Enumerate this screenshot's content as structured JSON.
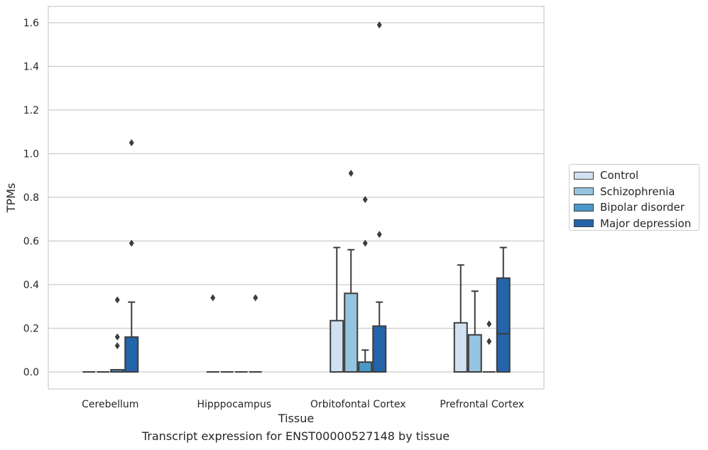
{
  "caption": "Transcript expression for ENST00000527148 by tissue",
  "colors": {
    "Control": "#d0e1f2",
    "Schizophrenia": "#94c4df",
    "Bipolar disorder": "#4a98c9",
    "Major depression": "#2464aa"
  },
  "chart_data": {
    "type": "box",
    "xlabel": "Tissue",
    "ylabel": "TPMs",
    "ylim": [
      -0.08,
      1.67
    ],
    "yticks": [
      "0.0",
      "0.2",
      "0.4",
      "0.6",
      "0.8",
      "1.0",
      "1.2",
      "1.4",
      "1.6"
    ],
    "grid": true,
    "legend_position": "right",
    "categories": [
      "Cerebellum",
      "Hipppocampus",
      "Orbitofontal Cortex",
      "Prefrontal Cortex"
    ],
    "series": [
      {
        "name": "Control",
        "boxes": [
          {
            "q1": 0,
            "median": 0,
            "q3": 0,
            "whislo": 0,
            "whishi": 0,
            "fliers": []
          },
          {
            "q1": 0,
            "median": 0,
            "q3": 0,
            "whislo": 0,
            "whishi": 0,
            "fliers": [
              0.34
            ]
          },
          {
            "q1": 0,
            "median": 0,
            "q3": 0.235,
            "whislo": 0,
            "whishi": 0.57,
            "fliers": []
          },
          {
            "q1": 0,
            "median": 0,
            "q3": 0.225,
            "whislo": 0,
            "whishi": 0.49,
            "fliers": []
          }
        ]
      },
      {
        "name": "Schizophrenia",
        "boxes": [
          {
            "q1": 0,
            "median": 0,
            "q3": 0,
            "whislo": 0,
            "whishi": 0,
            "fliers": []
          },
          {
            "q1": 0,
            "median": 0,
            "q3": 0,
            "whislo": 0,
            "whishi": 0,
            "fliers": []
          },
          {
            "q1": 0,
            "median": 0,
            "q3": 0.36,
            "whislo": 0,
            "whishi": 0.56,
            "fliers": [
              0.91
            ]
          },
          {
            "q1": 0,
            "median": 0,
            "q3": 0.17,
            "whislo": 0,
            "whishi": 0.37,
            "fliers": []
          }
        ]
      },
      {
        "name": "Bipolar disorder",
        "boxes": [
          {
            "q1": 0,
            "median": 0,
            "q3": 0.01,
            "whislo": 0,
            "whishi": 0.01,
            "fliers": [
              0.33,
              0.16,
              0.12
            ]
          },
          {
            "q1": 0,
            "median": 0,
            "q3": 0,
            "whislo": 0,
            "whishi": 0,
            "fliers": []
          },
          {
            "q1": 0,
            "median": 0,
            "q3": 0.045,
            "whislo": 0,
            "whishi": 0.1,
            "fliers": [
              0.79,
              0.59
            ]
          },
          {
            "q1": 0,
            "median": 0,
            "q3": 0,
            "whislo": 0,
            "whishi": 0,
            "fliers": [
              0.22,
              0.14
            ]
          }
        ]
      },
      {
        "name": "Major depression",
        "boxes": [
          {
            "q1": 0,
            "median": 0,
            "q3": 0.16,
            "whislo": 0,
            "whishi": 0.32,
            "fliers": [
              1.05,
              0.59
            ]
          },
          {
            "q1": 0,
            "median": 0,
            "q3": 0,
            "whislo": 0,
            "whishi": 0,
            "fliers": [
              0.34
            ]
          },
          {
            "q1": 0,
            "median": 0,
            "q3": 0.21,
            "whislo": 0,
            "whishi": 0.32,
            "fliers": [
              1.59,
              0.63
            ]
          },
          {
            "q1": 0,
            "median": 0.175,
            "q3": 0.43,
            "whislo": 0,
            "whishi": 0.57,
            "fliers": []
          }
        ]
      }
    ]
  }
}
